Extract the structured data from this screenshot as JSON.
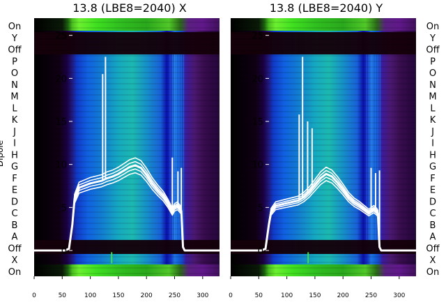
{
  "chart_data": [
    {
      "type": "heatmap",
      "title": "13.8 (LBE8=2040) X",
      "ylabel": "Dipole",
      "xlim": [
        0,
        330
      ],
      "ylim": [
        -3,
        27
      ],
      "xticks": [
        0,
        50,
        100,
        150,
        200,
        250,
        300
      ],
      "yticks": [
        0,
        5,
        10,
        15,
        20,
        25
      ],
      "dipole_labels": [
        "On",
        "Y",
        "Off",
        "P",
        "O",
        "N",
        "M",
        "L",
        "K",
        "J",
        "I",
        "H",
        "G",
        "F",
        "E",
        "D",
        "C",
        "B",
        "A",
        "Off",
        "X",
        "On"
      ],
      "overlay_series": {
        "x": [
          0,
          55,
          62,
          68,
          72,
          80,
          100,
          120,
          130,
          140,
          150,
          160,
          170,
          180,
          190,
          200,
          210,
          220,
          230,
          238,
          242,
          246,
          250,
          255,
          260,
          262,
          265,
          268,
          272,
          300,
          330
        ],
        "y": [
          0,
          0,
          0.2,
          3,
          6,
          7.3,
          7.8,
          8.1,
          8.4,
          8.6,
          8.9,
          9.3,
          9.7,
          9.9,
          9.6,
          8.8,
          7.8,
          7,
          6.3,
          5.5,
          5,
          4.5,
          5,
          5.2,
          4.8,
          4.6,
          0.4,
          0,
          0,
          0,
          0
        ]
      },
      "spikes": [
        {
          "x": 122,
          "y": 20.5
        },
        {
          "x": 127,
          "y": 22.5
        },
        {
          "x": 246,
          "y": 10.8
        },
        {
          "x": 256,
          "y": 9.2
        },
        {
          "x": 262,
          "y": 9.6
        }
      ]
    },
    {
      "type": "heatmap",
      "title": "13.8 (LBE8=2040) Y",
      "ylabel": "",
      "xlim": [
        0,
        330
      ],
      "ylim": [
        -3,
        27
      ],
      "xticks": [
        0,
        50,
        100,
        150,
        200,
        250,
        300
      ],
      "yticks": [
        0,
        5,
        10,
        15,
        20,
        25
      ],
      "dipole_labels": [
        "On",
        "Y",
        "Off",
        "P",
        "O",
        "N",
        "M",
        "L",
        "K",
        "J",
        "I",
        "H",
        "G",
        "F",
        "E",
        "D",
        "C",
        "B",
        "A",
        "Off",
        "X",
        "On"
      ],
      "overlay_series": {
        "x": [
          0,
          55,
          62,
          68,
          72,
          80,
          100,
          120,
          130,
          140,
          150,
          160,
          170,
          180,
          190,
          200,
          210,
          220,
          230,
          238,
          242,
          246,
          250,
          255,
          260,
          262,
          265,
          268,
          272,
          300,
          330
        ],
        "y": [
          0,
          0,
          0.2,
          3,
          4.5,
          5.2,
          5.5,
          5.8,
          6.2,
          6.8,
          7.6,
          8.4,
          8.9,
          8.6,
          7.9,
          7.1,
          6.2,
          5.6,
          5.2,
          4.8,
          4.6,
          4.4,
          4.6,
          4.8,
          4.5,
          4.3,
          0.4,
          0,
          0,
          0,
          0
        ]
      },
      "spikes": [
        {
          "x": 122,
          "y": 15.8
        },
        {
          "x": 128,
          "y": 22.5
        },
        {
          "x": 137,
          "y": 15
        },
        {
          "x": 145,
          "y": 14.2
        },
        {
          "x": 250,
          "y": 9.6
        },
        {
          "x": 258,
          "y": 9
        },
        {
          "x": 265,
          "y": 9.3
        }
      ]
    }
  ],
  "colors": {
    "background": "#ffffff",
    "overlay": "#ffffff",
    "dark_band": "#140008"
  }
}
